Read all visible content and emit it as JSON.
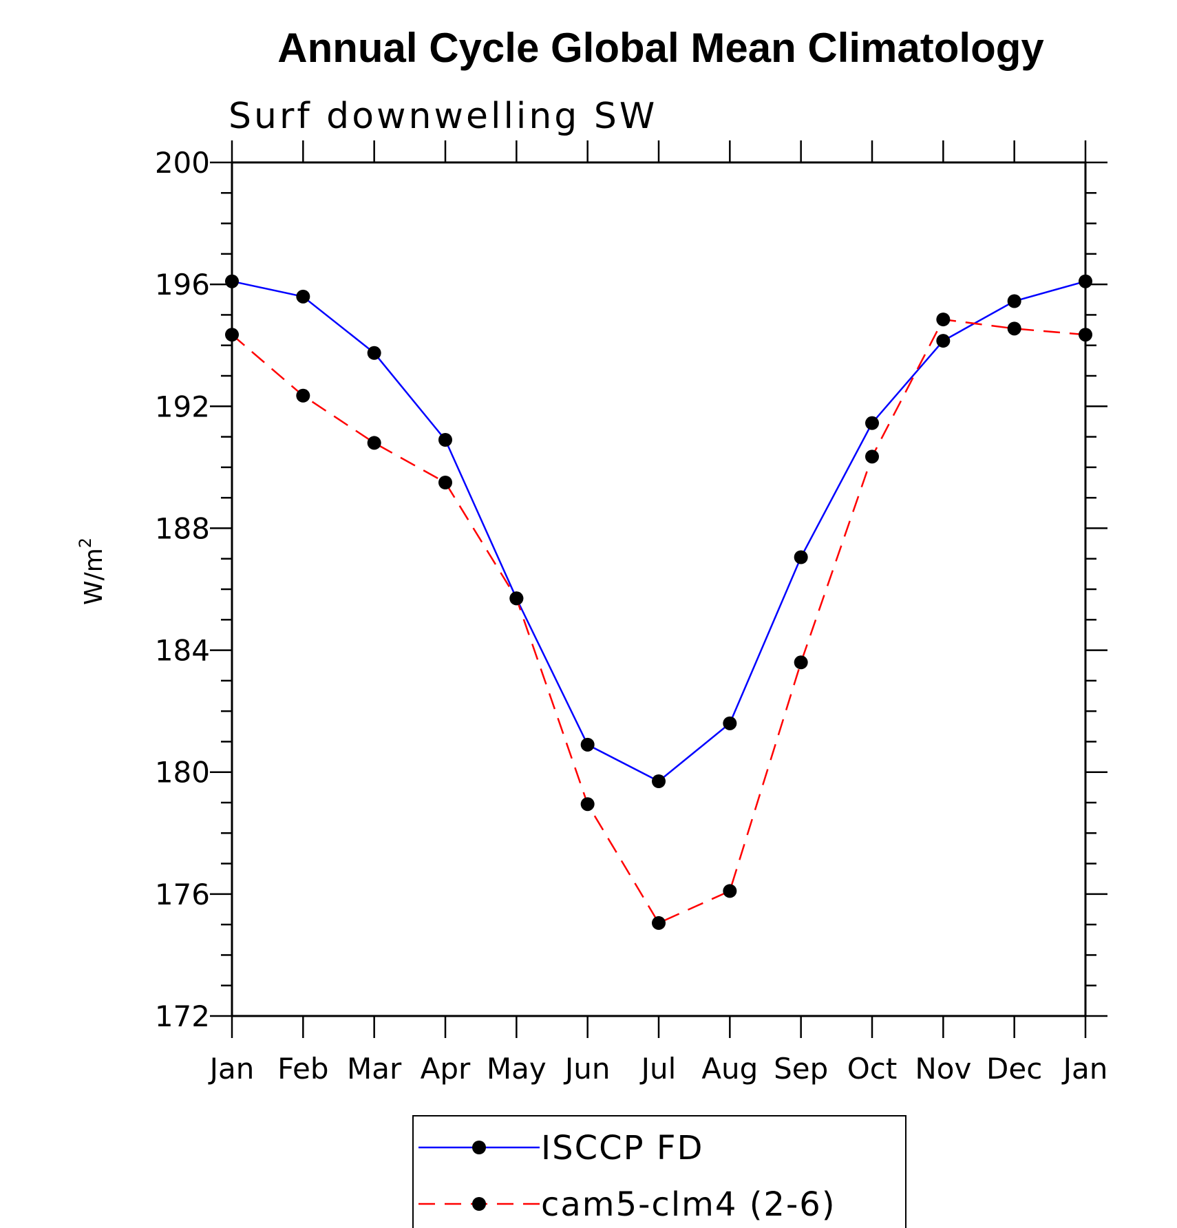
{
  "chart_data": {
    "type": "line",
    "title": "Annual Cycle Global Mean Climatology",
    "subtitle": "Surf downwelling SW",
    "ylabel": "W/m",
    "ylabel_superscript": "2",
    "categories": [
      "Jan",
      "Feb",
      "Mar",
      "Apr",
      "May",
      "Jun",
      "Jul",
      "Aug",
      "Sep",
      "Oct",
      "Nov",
      "Dec",
      "Jan"
    ],
    "ylim": [
      172,
      200
    ],
    "yticks": [
      172,
      176,
      180,
      184,
      188,
      192,
      196,
      200
    ],
    "y_minor_step": 1,
    "series": [
      {
        "name": "ISCCP FD",
        "color": "#0000ff",
        "line_style": "solid",
        "marker": "filled-circle",
        "values": [
          196.1,
          195.6,
          193.75,
          190.9,
          185.7,
          180.9,
          179.7,
          181.6,
          187.05,
          191.45,
          194.15,
          195.45,
          196.1
        ]
      },
      {
        "name": "cam5-clm4 (2-6)",
        "color": "#ff0000",
        "line_style": "dashed",
        "marker": "filled-circle",
        "values": [
          194.35,
          192.35,
          190.8,
          189.5,
          185.7,
          178.95,
          175.05,
          176.1,
          183.6,
          190.35,
          194.85,
          194.55,
          194.35
        ]
      }
    ],
    "grid": false,
    "legend_position": "bottom-center"
  }
}
